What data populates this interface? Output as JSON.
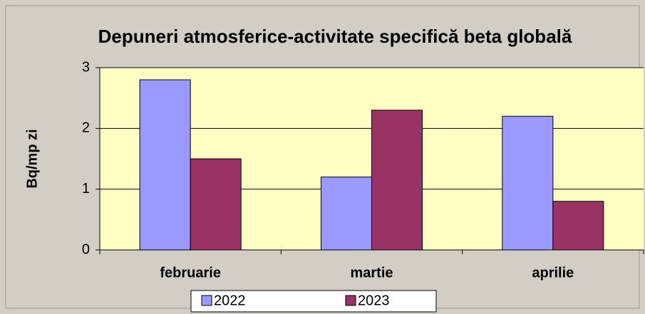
{
  "chart_data": {
    "type": "bar",
    "title": "Depuneri atmosferice-activitate specifică beta globală",
    "y_label": "Bq/mp zi",
    "categories": [
      "februarie",
      "martie",
      "aprilie"
    ],
    "series": [
      {
        "name": "2022",
        "color": "#9999ff",
        "values": [
          2.8,
          1.2,
          2.2
        ]
      },
      {
        "name": "2023",
        "color": "#993366",
        "values": [
          1.5,
          2.3,
          0.8
        ]
      }
    ],
    "ylim": [
      0,
      3
    ],
    "yticks": [
      0,
      1,
      2,
      3
    ],
    "grid": true,
    "legend": "bottom"
  }
}
